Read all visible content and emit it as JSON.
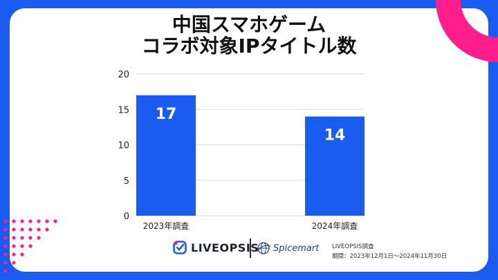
{
  "title_line1": "中国スマホゲーム",
  "title_line2": "コラボ対象IPタイトル数",
  "chart_data": {
    "type": "bar",
    "title": "中国スマホゲーム コラボ対象IPタイトル数",
    "categories": [
      "2023年調査",
      "2024年調査"
    ],
    "values": [
      17,
      14
    ],
    "ylim": [
      0,
      20
    ],
    "yticks": [
      0,
      5,
      10,
      15,
      20
    ],
    "grid": true,
    "bar_color": "#1a5cf0",
    "data_labels": [
      "17",
      "14"
    ]
  },
  "footer": {
    "logo_a": "LIVEOPSIS",
    "logo_b": "Spicemart",
    "source_line1": "LIVEOPSIS調査",
    "source_line2": "期間：2023年12月1日〜2024年11月30日"
  },
  "colors": {
    "background": "#1a5cf0",
    "accent_pink": "#ff1e8c",
    "bar": "#1a5cf0"
  },
  "icons": [
    "liveopsis-logo-icon",
    "globe-icon"
  ]
}
